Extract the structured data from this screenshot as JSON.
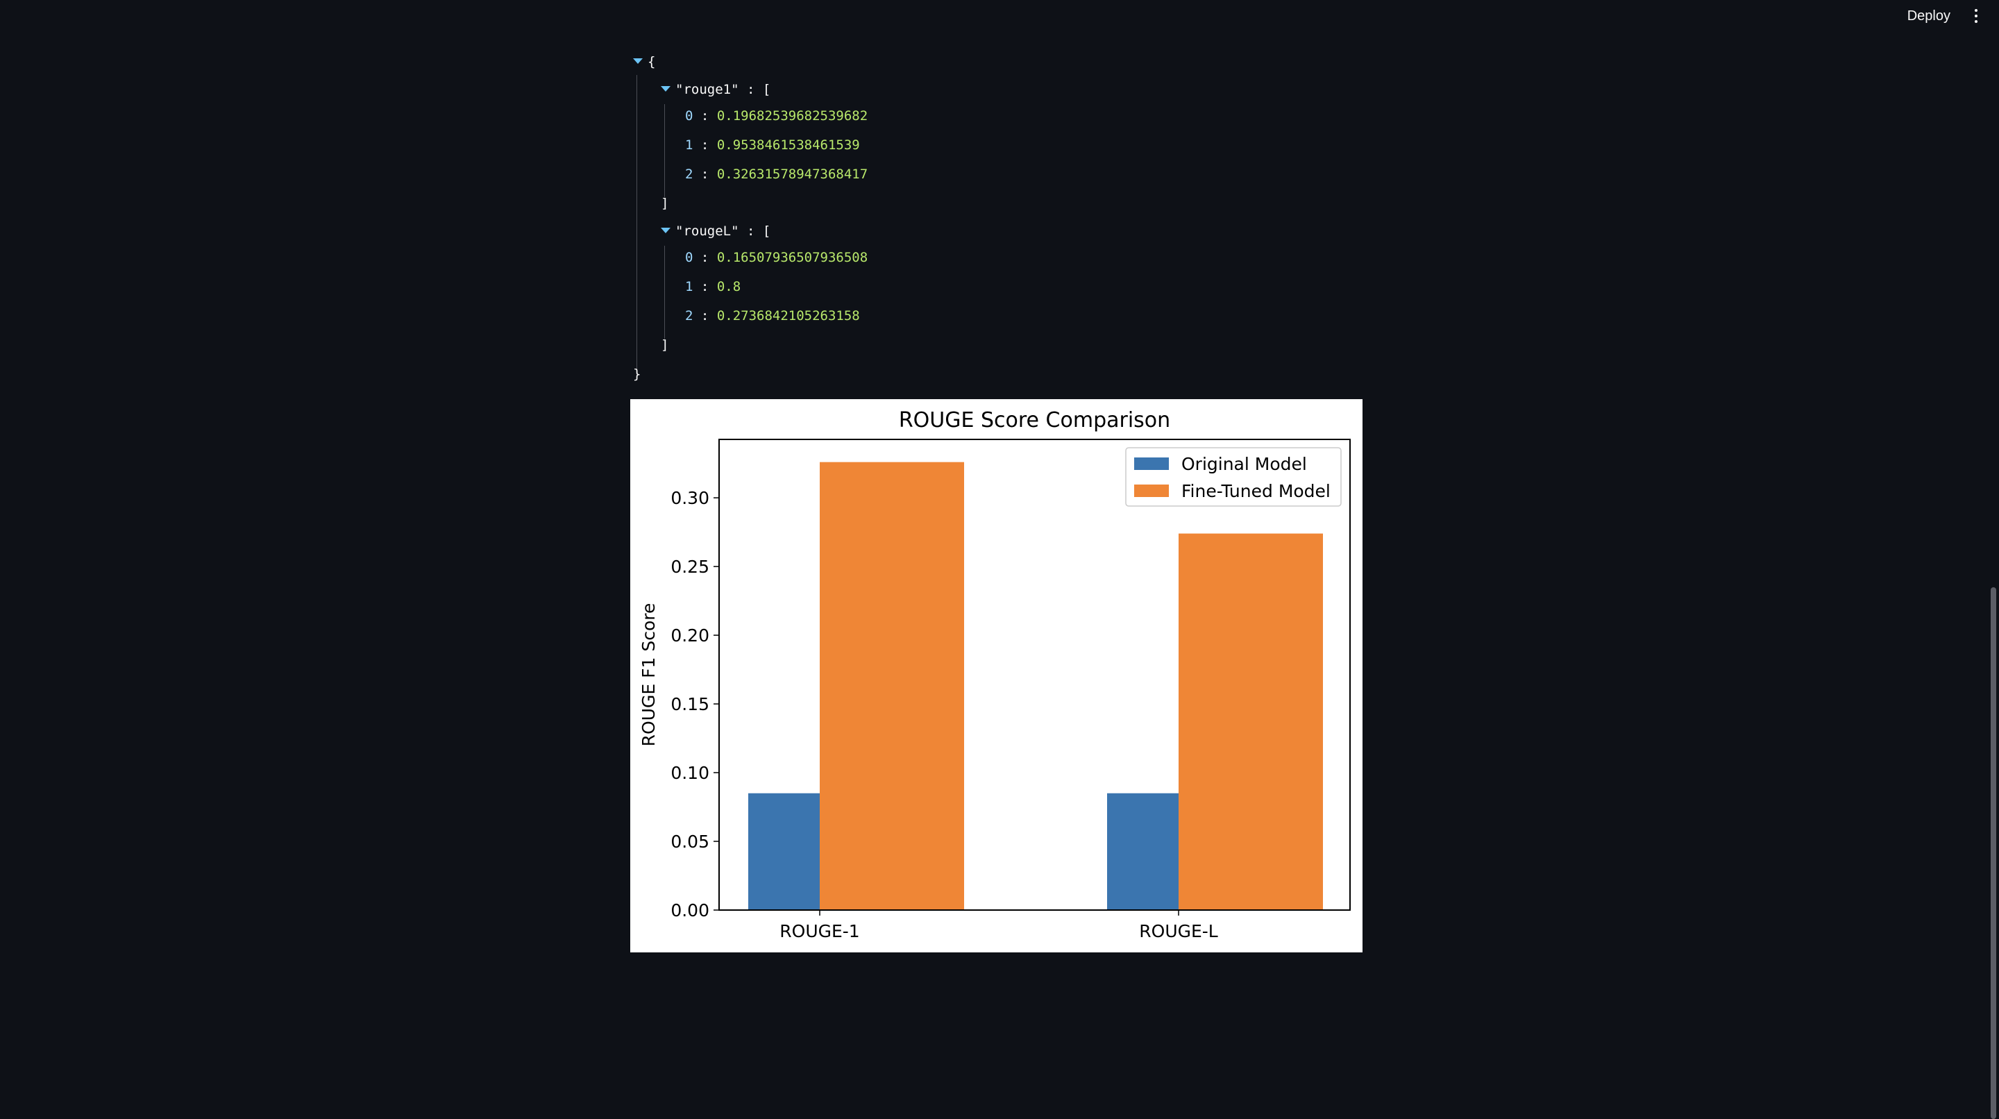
{
  "header": {
    "deploy_label": "Deploy"
  },
  "json_view": {
    "open_brace": "{",
    "close_brace": "}",
    "keys": [
      {
        "name": "\"rouge1\"",
        "values": [
          "0.19682539682539682",
          "0.9538461538461539",
          "0.32631578947368417"
        ]
      },
      {
        "name": "\"rougeL\"",
        "values": [
          "0.16507936507936508",
          "0.8",
          "0.2736842105263158"
        ]
      }
    ],
    "indices": [
      "0",
      "1",
      "2"
    ],
    "colon": ":",
    "open_bracket": "[",
    "close_bracket": "]"
  },
  "chart_data": {
    "type": "bar",
    "title": "ROUGE Score Comparison",
    "xlabel": "",
    "ylabel": "ROUGE F1 Score",
    "categories": [
      "ROUGE-1",
      "ROUGE-L"
    ],
    "series": [
      {
        "name": "Original Model",
        "color": "#3b75af",
        "values": [
          0.085,
          0.085
        ]
      },
      {
        "name": "Fine-Tuned Model",
        "color": "#ef8636",
        "values": [
          0.326,
          0.274
        ]
      }
    ],
    "ylim": [
      0,
      0.3425
    ],
    "yticks": [
      "0.00",
      "0.05",
      "0.10",
      "0.15",
      "0.20",
      "0.25",
      "0.30"
    ],
    "ytick_values": [
      0,
      0.05,
      0.1,
      0.15,
      0.2,
      0.25,
      0.3
    ],
    "legend": "top-right",
    "grid": false
  }
}
